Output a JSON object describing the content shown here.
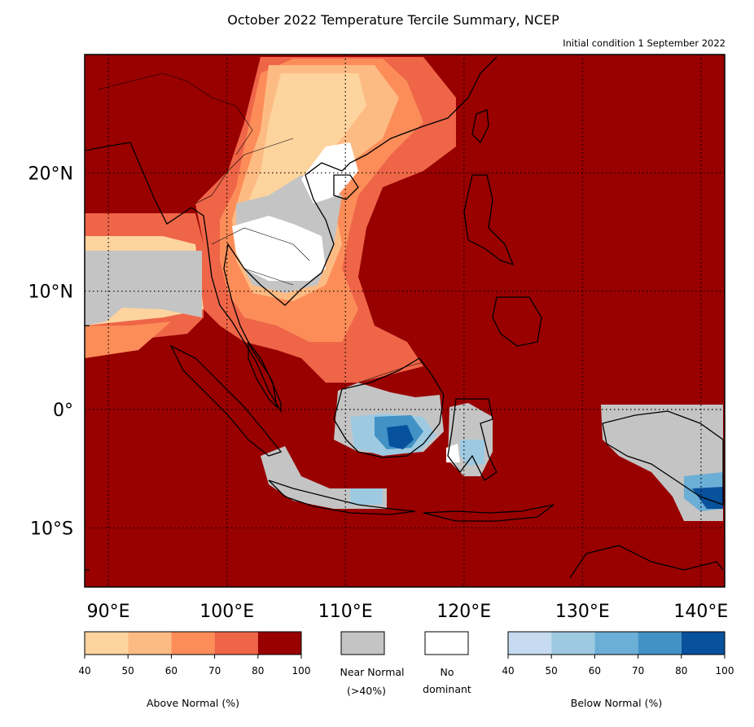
{
  "title": "October 2022 Temperature Tercile Summary, NCEP",
  "subtitle": "Initial condition 1 September 2022",
  "map": {
    "extent": {
      "lon_min": 88,
      "lon_max": 142,
      "lat_min": -15,
      "lat_max": 30
    },
    "lat_labels": [
      {
        "value": 20,
        "label": "20°N"
      },
      {
        "value": 10,
        "label": "10°N"
      },
      {
        "value": 0,
        "label": "0°"
      },
      {
        "value": -10,
        "label": "10°S"
      }
    ],
    "lon_labels": [
      {
        "value": 90,
        "label": "90°E"
      },
      {
        "value": 100,
        "label": "100°E"
      },
      {
        "value": 110,
        "label": "110°E"
      },
      {
        "value": 120,
        "label": "120°E"
      },
      {
        "value": 130,
        "label": "130°E"
      },
      {
        "value": 140,
        "label": "140°E"
      }
    ],
    "grid": "dotted",
    "colors": {
      "above": [
        "#fdd49e",
        "#fdbb84",
        "#fc8d59",
        "#ef6548",
        "#990000"
      ],
      "near_normal": "#c4c4c4",
      "no_dominant": "#ffffff",
      "below": [
        "#c6dbef",
        "#9ecae1",
        "#6baed6",
        "#4292c6",
        "#08519c"
      ]
    }
  },
  "legend": {
    "above": {
      "label": "Above Normal (%)",
      "ticks": [
        "40",
        "50",
        "60",
        "70",
        "80",
        "100"
      ]
    },
    "near_normal": {
      "label_line1": "Near Normal",
      "label_line2": "(>40%)"
    },
    "no_dominant": {
      "label_line1": "No",
      "label_line2": "dominant"
    },
    "below": {
      "label": "Below Normal (%)",
      "ticks": [
        "40",
        "50",
        "60",
        "70",
        "80",
        "100"
      ]
    }
  }
}
